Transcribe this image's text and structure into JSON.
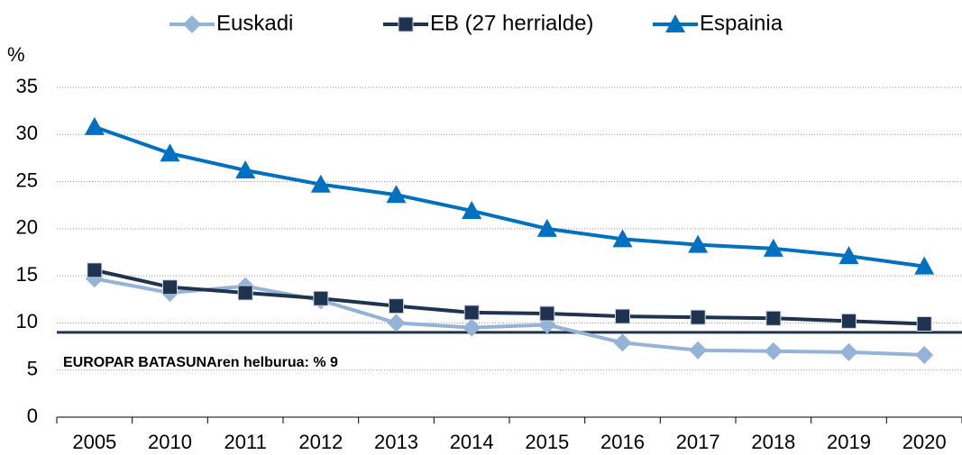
{
  "chart_data": {
    "type": "line",
    "y_label": "%",
    "categories": [
      "2005",
      "2010",
      "2011",
      "2012",
      "2013",
      "2014",
      "2015",
      "2016",
      "2017",
      "2018",
      "2019",
      "2020"
    ],
    "series": [
      {
        "name": "Euskadi",
        "color": "#95b3d7",
        "marker": "diamond",
        "values": [
          14.7,
          13.2,
          13.9,
          12.4,
          10.0,
          9.5,
          9.8,
          7.9,
          7.1,
          7.0,
          6.9,
          6.6
        ]
      },
      {
        "name": "EB (27 herrialde)",
        "color": "#1f3350",
        "marker": "square",
        "values": [
          15.6,
          13.8,
          13.2,
          12.6,
          11.8,
          11.1,
          11.0,
          10.7,
          10.6,
          10.5,
          10.2,
          9.9
        ]
      },
      {
        "name": "Espainia",
        "color": "#0070c0",
        "marker": "triangle",
        "values": [
          30.8,
          28.0,
          26.2,
          24.7,
          23.6,
          21.9,
          20.0,
          18.9,
          18.3,
          17.9,
          17.1,
          16.0
        ]
      }
    ],
    "target": {
      "value": 9,
      "label": "EUROPAR BATASUNAren helburua: % 9",
      "color": "#1f3350",
      "label_color": "#4a7ee0"
    },
    "ylim": [
      0,
      35
    ],
    "yticks": [
      0,
      5,
      10,
      15,
      20,
      25,
      30,
      35
    ],
    "grid": true,
    "legend": "top"
  }
}
